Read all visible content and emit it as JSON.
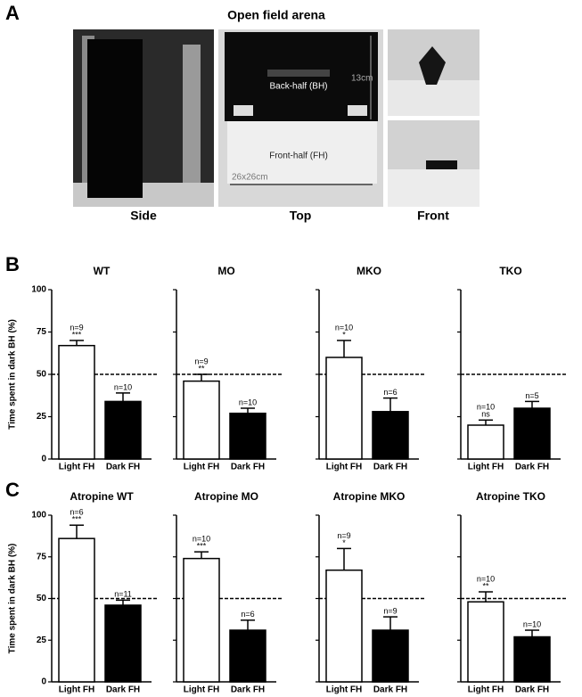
{
  "panel_letters": [
    "A",
    "B",
    "C"
  ],
  "panel_a": {
    "title": "Open field arena",
    "photo_labels": [
      "Side",
      "Top",
      "Front"
    ],
    "photo_texts": [
      "Back-half (BH)",
      "13cm",
      "Front-half (FH)",
      "26x26cm"
    ]
  },
  "chart_data": [
    {
      "type": "bar",
      "title": "WT",
      "ylabel": "Time spent in dark BH (%)",
      "categories": [
        "Light FH",
        "Dark FH"
      ],
      "values": [
        67,
        34
      ],
      "errors": [
        3,
        5
      ],
      "annotations": [
        [
          "n=9",
          "***"
        ],
        [
          "n=10"
        ]
      ],
      "colors": [
        "#ffffff",
        "#000000"
      ],
      "ylim": [
        0,
        100
      ],
      "yticks": [
        0,
        25,
        50,
        75,
        100
      ],
      "ytick_labels": true,
      "reference_line": 50
    },
    {
      "type": "bar",
      "title": "MO",
      "categories": [
        "Light FH",
        "Dark FH"
      ],
      "values": [
        46,
        27
      ],
      "errors": [
        4,
        3
      ],
      "annotations": [
        [
          "n=9",
          "**"
        ],
        [
          "n=10"
        ]
      ],
      "colors": [
        "#ffffff",
        "#000000"
      ],
      "ylim": [
        0,
        100
      ],
      "yticks": [
        0,
        25,
        50,
        75,
        100
      ],
      "ytick_labels": false,
      "reference_line": 50
    },
    {
      "type": "bar",
      "title": "MKO",
      "categories": [
        "Light FH",
        "Dark FH"
      ],
      "values": [
        60,
        28
      ],
      "errors": [
        10,
        8
      ],
      "annotations": [
        [
          "n=10",
          "*"
        ],
        [
          "n=6"
        ]
      ],
      "colors": [
        "#ffffff",
        "#000000"
      ],
      "ylim": [
        0,
        100
      ],
      "yticks": [
        0,
        25,
        50,
        75,
        100
      ],
      "ytick_labels": false,
      "reference_line": 50
    },
    {
      "type": "bar",
      "title": "TKO",
      "categories": [
        "Light FH",
        "Dark FH"
      ],
      "values": [
        20,
        30
      ],
      "errors": [
        3,
        4
      ],
      "annotations": [
        [
          "n=10",
          "ns"
        ],
        [
          "n=5"
        ]
      ],
      "colors": [
        "#ffffff",
        "#000000"
      ],
      "ylim": [
        0,
        100
      ],
      "yticks": [
        0,
        25,
        50,
        75,
        100
      ],
      "ytick_labels": false,
      "reference_line": 50
    },
    {
      "type": "bar",
      "title": "Atropine WT",
      "ylabel": "Time spent in dark BH (%)",
      "categories": [
        "Light FH",
        "Dark FH"
      ],
      "values": [
        86,
        46
      ],
      "errors": [
        8,
        3
      ],
      "annotations": [
        [
          "n=6",
          "***"
        ],
        [
          "n=11"
        ]
      ],
      "colors": [
        "#ffffff",
        "#000000"
      ],
      "ylim": [
        0,
        100
      ],
      "yticks": [
        0,
        25,
        50,
        75,
        100
      ],
      "ytick_labels": true,
      "reference_line": 50
    },
    {
      "type": "bar",
      "title": "Atropine MO",
      "categories": [
        "Light FH",
        "Dark FH"
      ],
      "values": [
        74,
        31
      ],
      "errors": [
        4,
        6
      ],
      "annotations": [
        [
          "n=10",
          "***"
        ],
        [
          "n=6"
        ]
      ],
      "colors": [
        "#ffffff",
        "#000000"
      ],
      "ylim": [
        0,
        100
      ],
      "yticks": [
        0,
        25,
        50,
        75,
        100
      ],
      "ytick_labels": false,
      "reference_line": 50
    },
    {
      "type": "bar",
      "title": "Atropine MKO",
      "categories": [
        "Light FH",
        "Dark FH"
      ],
      "values": [
        67,
        31
      ],
      "errors": [
        13,
        8
      ],
      "annotations": [
        [
          "n=9",
          "*"
        ],
        [
          "n=9"
        ]
      ],
      "colors": [
        "#ffffff",
        "#000000"
      ],
      "ylim": [
        0,
        100
      ],
      "yticks": [
        0,
        25,
        50,
        75,
        100
      ],
      "ytick_labels": false,
      "reference_line": 50
    },
    {
      "type": "bar",
      "title": "Atropine TKO",
      "categories": [
        "Light FH",
        "Dark FH"
      ],
      "values": [
        48,
        27
      ],
      "errors": [
        6,
        4
      ],
      "annotations": [
        [
          "n=10",
          "**"
        ],
        [
          "n=10"
        ]
      ],
      "colors": [
        "#ffffff",
        "#000000"
      ],
      "ylim": [
        0,
        100
      ],
      "yticks": [
        0,
        25,
        50,
        75,
        100
      ],
      "ytick_labels": false,
      "reference_line": 50
    }
  ]
}
